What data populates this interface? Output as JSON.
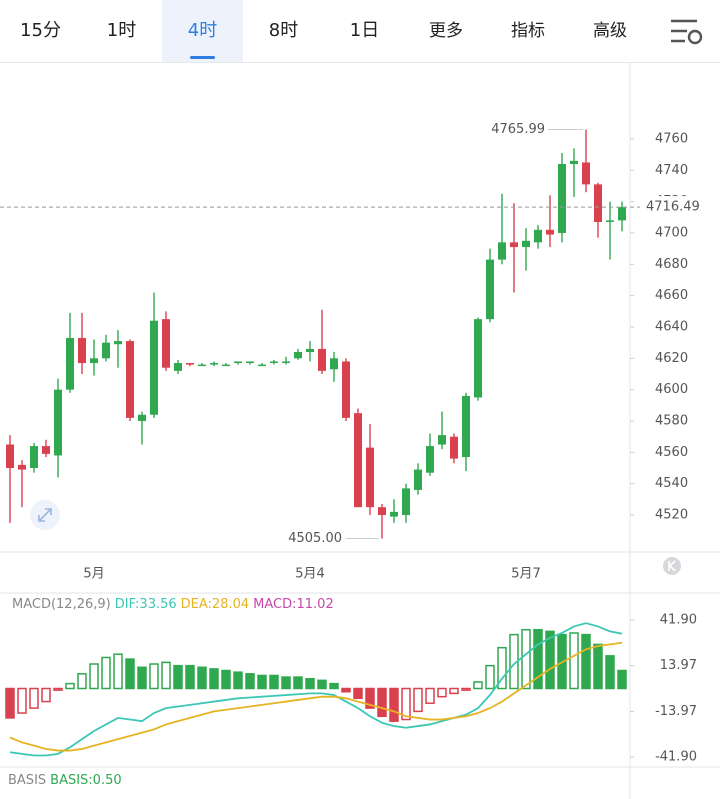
{
  "tabs": [
    "15分",
    "1时",
    "4时",
    "8时",
    "1日",
    "更多",
    "指标",
    "高级"
  ],
  "selected_tab": "4时",
  "basis": {
    "label": "BASIS",
    "value_text": "BASIS:0.50"
  },
  "chart_data": [
    {
      "type": "candlestick",
      "categories": [
        null,
        null,
        null,
        null,
        null,
        null,
        null,
        "5月",
        null,
        null,
        null,
        null,
        null,
        null,
        null,
        null,
        null,
        null,
        null,
        null,
        null,
        null,
        null,
        null,
        null,
        "5月4",
        null,
        null,
        null,
        null,
        null,
        null,
        null,
        null,
        null,
        null,
        null,
        null,
        null,
        null,
        null,
        null,
        null,
        "5月7",
        null,
        null,
        null,
        null,
        null,
        null,
        null,
        null
      ],
      "open": [
        4565,
        4552,
        4550,
        4564,
        4558,
        4600,
        4633,
        4617,
        4620,
        4629,
        4631,
        4580,
        4584,
        4645,
        4612,
        4617,
        4616,
        4616,
        4616,
        4617,
        4617,
        4616,
        4617,
        4617,
        4620,
        4624,
        4626,
        4613,
        4618,
        4585,
        4563,
        4525,
        4519,
        4520,
        4536,
        4547,
        4565,
        4570,
        4557,
        4595,
        4645,
        4683,
        4694,
        4691,
        4694,
        4702,
        4700,
        4744,
        4745,
        4731,
        4707,
        4708
      ],
      "high": [
        4571,
        4555,
        4566,
        4568,
        4607,
        4649,
        4649,
        4632,
        4635,
        4638,
        4632,
        4586,
        4662,
        4650,
        4619,
        4617,
        4617,
        4618,
        4617,
        4618,
        4618,
        4617,
        4619,
        4621,
        4626,
        4631,
        4651,
        4624,
        4620,
        4588,
        4578,
        4527,
        4530,
        4540,
        4553,
        4572,
        4586,
        4572,
        4598,
        4646,
        4690,
        4725,
        4719,
        4703,
        4705,
        4724,
        4751,
        4754,
        4765.99,
        4732,
        4720,
        4720
      ],
      "low": [
        4515,
        4525,
        4547,
        4557,
        4544,
        4598,
        4610,
        4609,
        4618,
        4614,
        4580,
        4565,
        4582,
        4612,
        4610,
        4615,
        4615,
        4615,
        4615,
        4616,
        4616,
        4615,
        4616,
        4616,
        4619,
        4618,
        4610,
        4605,
        4580,
        4525,
        4520,
        4505,
        4515,
        4515,
        4533,
        4545,
        4562,
        4553,
        4548,
        4593,
        4643,
        4680,
        4662,
        4676,
        4690,
        4691,
        4694,
        4723,
        4726,
        4697,
        4683,
        4701
      ],
      "close": [
        4550,
        4549,
        4564,
        4559,
        4600,
        4633,
        4617,
        4620,
        4630,
        4631,
        4582,
        4584,
        4644,
        4614,
        4617,
        4616,
        4616,
        4617,
        4616,
        4618,
        4618,
        4616,
        4618,
        4618,
        4624,
        4626,
        4612,
        4620,
        4582,
        4525,
        4525,
        4520,
        4522,
        4537,
        4549,
        4564,
        4571,
        4556,
        4596,
        4645,
        4683,
        4694,
        4691,
        4695,
        4702,
        4699,
        4744,
        4746,
        4731,
        4707,
        4708,
        4716.49
      ],
      "up_color": "#2fa84f",
      "down_color": "#d9414f",
      "ylim": [
        4496.4,
        4809.1
      ],
      "yticks": [
        4520,
        4540,
        4560,
        4580,
        4600,
        4620,
        4640,
        4660,
        4680,
        4700,
        4720,
        4740,
        4760
      ],
      "last_price": 4716.49,
      "max_label": 4765.99,
      "min_label": {
        "value": 4505,
        "label": "4505.00"
      },
      "grid": false
    },
    {
      "type": "macd",
      "title": "MACD(12,26,9)",
      "series": [
        {
          "name": "DIF:33.56",
          "color": "#3cc7b4",
          "kind": "line",
          "values": [
            -39,
            -40,
            -41,
            -41,
            -40,
            -36,
            -31,
            -26,
            -22,
            -18,
            -19,
            -20,
            -15,
            -12,
            -11,
            -10,
            -9,
            -8,
            -7,
            -6,
            -5.5,
            -5,
            -4.5,
            -4,
            -3.5,
            -3,
            -3,
            -4,
            -8,
            -12,
            -17,
            -21,
            -23,
            -24,
            -23,
            -22,
            -20,
            -18,
            -16,
            -12,
            -4,
            6,
            15,
            21,
            27,
            31,
            34,
            38,
            40,
            38,
            35,
            33.56
          ]
        },
        {
          "name": "DEA:28.04",
          "color": "#e6b422",
          "kind": "line",
          "values": [
            -30,
            -33,
            -35,
            -37,
            -38,
            -38,
            -37,
            -35,
            -33,
            -31,
            -29,
            -27,
            -25,
            -22,
            -20,
            -18,
            -16,
            -14,
            -13,
            -12,
            -11,
            -10,
            -9,
            -8,
            -7,
            -6,
            -5,
            -5,
            -6,
            -8,
            -10,
            -12,
            -14,
            -17,
            -18,
            -19,
            -19,
            -18,
            -17,
            -15,
            -12,
            -8,
            -3,
            2,
            7,
            12,
            16,
            20,
            24,
            26,
            27,
            28.04
          ]
        },
        {
          "name": "MACD:11.02",
          "color": "#c548a8",
          "kind": "bar",
          "values": [
            -18,
            -15,
            -12,
            -8,
            -1,
            3,
            9,
            15,
            19,
            21,
            18,
            13,
            15,
            16,
            14,
            14,
            13,
            12,
            11,
            10,
            9,
            8,
            8,
            7,
            7,
            6,
            5,
            3,
            -2,
            -6,
            -12,
            -17,
            -20,
            -19,
            -14,
            -9,
            -5,
            -3,
            -1,
            4,
            14,
            25,
            33,
            36,
            36,
            35,
            33,
            34,
            33,
            27,
            20,
            11.02
          ]
        }
      ],
      "up_color": "#2fa84f",
      "down_color": "#d9414f",
      "ylim": [
        -65.2,
        57.25
      ],
      "yticks": [
        {
          "value": 41.9,
          "label": "41.90"
        },
        13.97,
        -13.97,
        {
          "value": -41.9,
          "label": "-41.90"
        }
      ]
    }
  ]
}
